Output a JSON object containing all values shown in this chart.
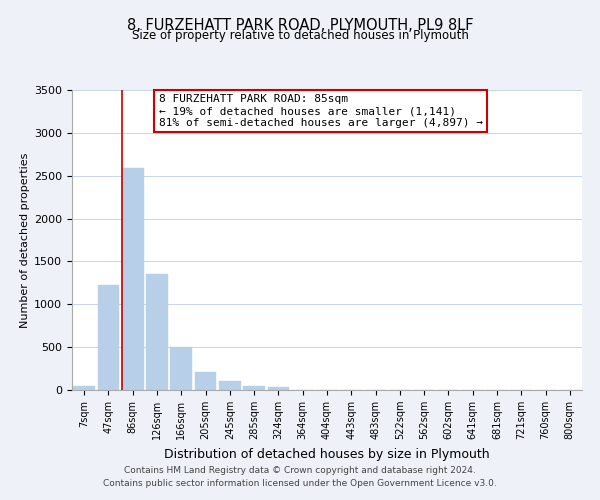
{
  "title_line1": "8, FURZEHATT PARK ROAD, PLYMOUTH, PL9 8LF",
  "title_line2": "Size of property relative to detached houses in Plymouth",
  "xlabel": "Distribution of detached houses by size in Plymouth",
  "ylabel": "Number of detached properties",
  "bar_labels": [
    "7sqm",
    "47sqm",
    "86sqm",
    "126sqm",
    "166sqm",
    "205sqm",
    "245sqm",
    "285sqm",
    "324sqm",
    "364sqm",
    "404sqm",
    "443sqm",
    "483sqm",
    "522sqm",
    "562sqm",
    "602sqm",
    "641sqm",
    "681sqm",
    "721sqm",
    "760sqm",
    "800sqm"
  ],
  "bar_values": [
    50,
    1230,
    2590,
    1350,
    500,
    205,
    110,
    50,
    30,
    0,
    0,
    0,
    0,
    0,
    0,
    0,
    0,
    0,
    0,
    0,
    0
  ],
  "bar_color": "#b8cfe8",
  "bar_edge_color": "#b8cfe8",
  "property_line_color": "#cc0000",
  "annotation_title": "8 FURZEHATT PARK ROAD: 85sqm",
  "annotation_line1": "← 19% of detached houses are smaller (1,141)",
  "annotation_line2": "81% of semi-detached houses are larger (4,897) →",
  "annotation_box_color": "#ffffff",
  "annotation_box_edge_color": "#cc0000",
  "ylim": [
    0,
    3500
  ],
  "yticks": [
    0,
    500,
    1000,
    1500,
    2000,
    2500,
    3000,
    3500
  ],
  "footer_line1": "Contains HM Land Registry data © Crown copyright and database right 2024.",
  "footer_line2": "Contains public sector information licensed under the Open Government Licence v3.0.",
  "background_color": "#eef2f8",
  "plot_background_color": "#ffffff",
  "grid_color": "#c8d4e8"
}
